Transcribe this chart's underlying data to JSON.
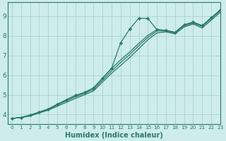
{
  "title": "",
  "xlabel": "Humidex (Indice chaleur)",
  "ylabel": "",
  "bg_color": "#cdecea",
  "grid_color": "#aad4d0",
  "line_color": "#2a7a6a",
  "marker_color": "#2a7a6a",
  "xlim": [
    -0.5,
    23
  ],
  "ylim": [
    3.5,
    9.7
  ],
  "yticks": [
    4,
    5,
    6,
    7,
    8,
    9
  ],
  "xticks": [
    0,
    1,
    2,
    3,
    4,
    5,
    6,
    7,
    8,
    9,
    10,
    11,
    12,
    13,
    14,
    15,
    16,
    17,
    18,
    19,
    20,
    21,
    22,
    23
  ],
  "line1_x": [
    0,
    1,
    2,
    3,
    4,
    5,
    6,
    7,
    8,
    9,
    10,
    11,
    12,
    13,
    14,
    15,
    16,
    17,
    18,
    19,
    20,
    21,
    22,
    23
  ],
  "line1_y": [
    3.8,
    3.85,
    3.92,
    4.08,
    4.22,
    4.42,
    4.62,
    4.82,
    5.0,
    5.2,
    5.65,
    6.1,
    6.5,
    6.9,
    7.35,
    7.8,
    8.15,
    8.2,
    8.1,
    8.45,
    8.6,
    8.4,
    8.8,
    9.2
  ],
  "line2_x": [
    0,
    1,
    2,
    3,
    4,
    5,
    6,
    7,
    8,
    9,
    10,
    11,
    12,
    13,
    14,
    15,
    16,
    17,
    18,
    19,
    20,
    21,
    22,
    23
  ],
  "line2_y": [
    3.8,
    3.85,
    3.95,
    4.1,
    4.25,
    4.48,
    4.7,
    4.9,
    5.07,
    5.28,
    5.75,
    6.22,
    6.65,
    7.05,
    7.5,
    7.92,
    8.25,
    8.25,
    8.15,
    8.52,
    8.65,
    8.48,
    8.88,
    9.28
  ],
  "line3_x": [
    0,
    1,
    2,
    3,
    4,
    5,
    6,
    7,
    8,
    9,
    10,
    11,
    12,
    13,
    14,
    15,
    16,
    17,
    18,
    19,
    20,
    21,
    22,
    23
  ],
  "line3_y": [
    3.8,
    3.85,
    3.97,
    4.12,
    4.28,
    4.52,
    4.75,
    4.97,
    5.12,
    5.35,
    5.85,
    6.35,
    6.78,
    7.18,
    7.62,
    8.02,
    8.32,
    8.28,
    8.18,
    8.56,
    8.7,
    8.52,
    8.92,
    9.32
  ],
  "markers_x": [
    0,
    1,
    2,
    3,
    4,
    5,
    6,
    7,
    8,
    9,
    10,
    11,
    12,
    13,
    14,
    15,
    16,
    17,
    18,
    19,
    20,
    21,
    22,
    23
  ],
  "markers_y": [
    3.8,
    3.85,
    3.97,
    4.12,
    4.28,
    4.52,
    4.75,
    4.97,
    5.12,
    5.35,
    5.85,
    6.35,
    7.65,
    8.35,
    8.9,
    8.88,
    8.32,
    8.28,
    8.18,
    8.56,
    8.7,
    8.52,
    8.92,
    9.32
  ]
}
